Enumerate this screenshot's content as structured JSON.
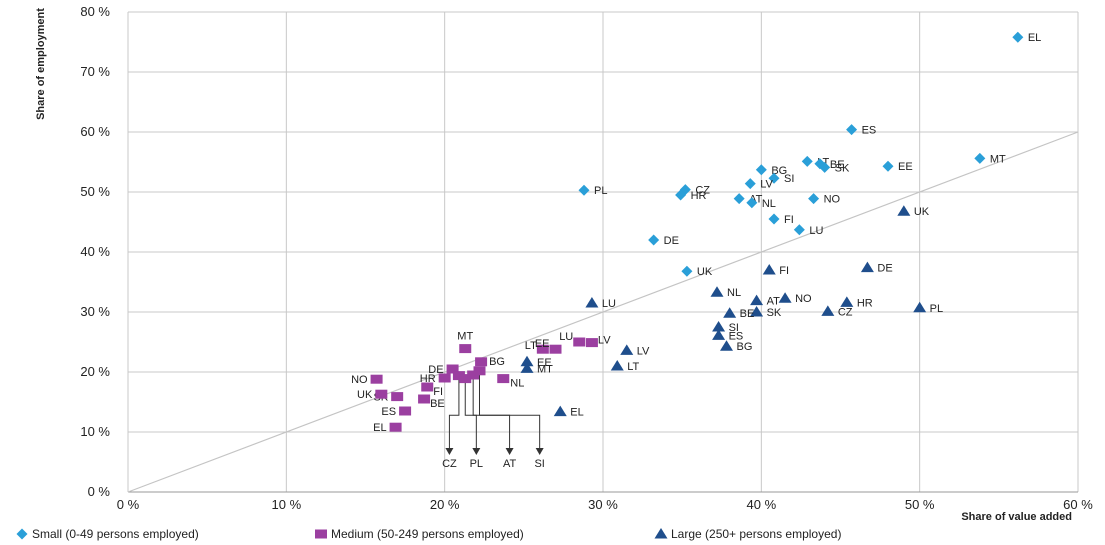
{
  "chart_data": {
    "type": "scatter",
    "xlabel": "Share of value added",
    "ylabel": "Share of employment",
    "xlim": [
      0,
      60
    ],
    "ylim": [
      0,
      80
    ],
    "x_ticks": [
      "0 %",
      "10 %",
      "20 %",
      "30 %",
      "40 %",
      "50 %",
      "60 %"
    ],
    "y_ticks": [
      "0 %",
      "10 %",
      "20 %",
      "30 %",
      "40 %",
      "50 %",
      "60 %",
      "70 %",
      "80 %"
    ],
    "grid": true,
    "diagonal_line": true,
    "legend_position": "bottom",
    "series": [
      {
        "name": "Small (0-49 persons employed)",
        "marker": "diamond",
        "color": "#2a9fd8",
        "points": [
          {
            "label": "EL",
            "x": 56.2,
            "y": 75.8
          },
          {
            "label": "ES",
            "x": 45.7,
            "y": 60.4
          },
          {
            "label": "MT",
            "x": 53.8,
            "y": 55.6
          },
          {
            "label": "LT",
            "x": 42.9,
            "y": 55.1
          },
          {
            "label": "BE",
            "x": 43.7,
            "y": 54.7
          },
          {
            "label": "SK",
            "x": 44.0,
            "y": 54.1
          },
          {
            "label": "EE",
            "x": 48.0,
            "y": 54.3
          },
          {
            "label": "BG",
            "x": 40.0,
            "y": 53.7
          },
          {
            "label": "SI",
            "x": 40.8,
            "y": 52.3
          },
          {
            "label": "LV",
            "x": 39.3,
            "y": 51.4
          },
          {
            "label": "PL",
            "x": 28.8,
            "y": 50.3
          },
          {
            "label": "CZ",
            "x": 35.2,
            "y": 50.4
          },
          {
            "label": "HR",
            "x": 34.9,
            "y": 49.5
          },
          {
            "label": "AT",
            "x": 38.6,
            "y": 48.9
          },
          {
            "label": "NL",
            "x": 39.4,
            "y": 48.2
          },
          {
            "label": "NO",
            "x": 43.3,
            "y": 48.9
          },
          {
            "label": "FI",
            "x": 40.8,
            "y": 45.5
          },
          {
            "label": "LU",
            "x": 42.4,
            "y": 43.7
          },
          {
            "label": "DE",
            "x": 33.2,
            "y": 42.0
          },
          {
            "label": "UK",
            "x": 35.3,
            "y": 36.8
          }
        ]
      },
      {
        "name": "Medium (50-249 persons employed)",
        "marker": "square",
        "color": "#9b3fa0",
        "points": [
          {
            "label": "MT",
            "x": 21.3,
            "y": 23.9
          },
          {
            "label": "BG",
            "x": 22.3,
            "y": 21.7
          },
          {
            "label": "LT",
            "x": 26.2,
            "y": 23.8
          },
          {
            "label": "EE",
            "x": 27.0,
            "y": 23.8
          },
          {
            "label": "LU",
            "x": 28.5,
            "y": 25.0
          },
          {
            "label": "LV",
            "x": 29.3,
            "y": 24.9
          },
          {
            "label": "DE",
            "x": 20.5,
            "y": 20.5
          },
          {
            "label": "HR",
            "x": 20.0,
            "y": 19.0
          },
          {
            "label": "CZ",
            "x": 20.9,
            "y": 19.4
          },
          {
            "label": "PL",
            "x": 21.3,
            "y": 18.9
          },
          {
            "label": "AT",
            "x": 21.8,
            "y": 19.5
          },
          {
            "label": "SI",
            "x": 22.2,
            "y": 20.2
          },
          {
            "label": "NL",
            "x": 23.7,
            "y": 18.9
          },
          {
            "label": "NO",
            "x": 15.7,
            "y": 18.8
          },
          {
            "label": "FI",
            "x": 18.9,
            "y": 17.5
          },
          {
            "label": "SK",
            "x": 17.0,
            "y": 15.9
          },
          {
            "label": "UK",
            "x": 16.0,
            "y": 16.3
          },
          {
            "label": "BE",
            "x": 18.7,
            "y": 15.5
          },
          {
            "label": "ES",
            "x": 17.5,
            "y": 13.5
          },
          {
            "label": "EL",
            "x": 16.9,
            "y": 10.8
          }
        ]
      },
      {
        "name": "Large (250+ persons employed)",
        "marker": "triangle",
        "color": "#1f4e8c",
        "points": [
          {
            "label": "UK",
            "x": 49.0,
            "y": 46.8
          },
          {
            "label": "DE",
            "x": 46.7,
            "y": 37.4
          },
          {
            "label": "FI",
            "x": 40.5,
            "y": 37.0
          },
          {
            "label": "NL",
            "x": 37.2,
            "y": 33.3
          },
          {
            "label": "AT",
            "x": 39.7,
            "y": 31.9
          },
          {
            "label": "NO",
            "x": 41.5,
            "y": 32.3
          },
          {
            "label": "HR",
            "x": 45.4,
            "y": 31.6
          },
          {
            "label": "PL",
            "x": 50.0,
            "y": 30.7
          },
          {
            "label": "LU",
            "x": 29.3,
            "y": 31.5
          },
          {
            "label": "SK",
            "x": 39.7,
            "y": 30.0
          },
          {
            "label": "CZ",
            "x": 44.2,
            "y": 30.1
          },
          {
            "label": "BE",
            "x": 38.0,
            "y": 29.8
          },
          {
            "label": "SI",
            "x": 37.3,
            "y": 27.5
          },
          {
            "label": "ES",
            "x": 37.3,
            "y": 26.1
          },
          {
            "label": "BG",
            "x": 37.8,
            "y": 24.3
          },
          {
            "label": "LV",
            "x": 31.5,
            "y": 23.6
          },
          {
            "label": "EE",
            "x": 25.2,
            "y": 21.7
          },
          {
            "label": "LT",
            "x": 30.9,
            "y": 21.0
          },
          {
            "label": "MT",
            "x": 25.2,
            "y": 20.6
          },
          {
            "label": "EL",
            "x": 27.3,
            "y": 13.4
          }
        ]
      }
    ],
    "callouts": [
      {
        "label": "CZ",
        "from": {
          "x": 20.9,
          "y": 19.4
        },
        "to": {
          "x": 20.3,
          "y": 5.5
        }
      },
      {
        "label": "PL",
        "from": {
          "x": 21.3,
          "y": 18.9
        },
        "to": {
          "x": 22.0,
          "y": 5.5
        }
      },
      {
        "label": "AT",
        "from": {
          "x": 21.8,
          "y": 19.5
        },
        "to": {
          "x": 24.1,
          "y": 5.5
        }
      },
      {
        "label": "SI",
        "from": {
          "x": 22.2,
          "y": 20.2
        },
        "to": {
          "x": 26.0,
          "y": 5.5
        }
      }
    ]
  }
}
